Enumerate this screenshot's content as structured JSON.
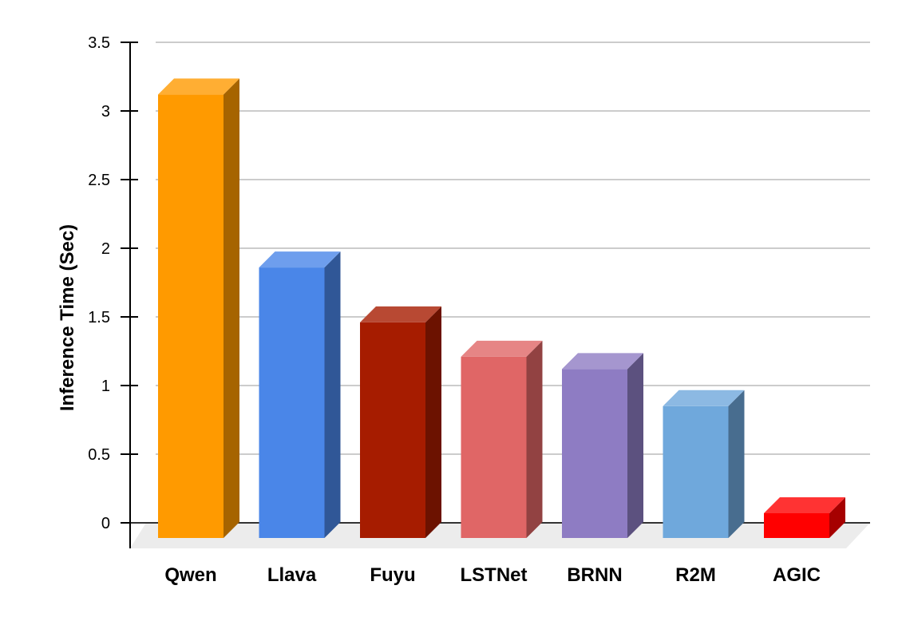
{
  "chart_data": {
    "type": "bar",
    "title": "",
    "xlabel": "",
    "ylabel": "Inference Time (Sec)",
    "ylim": [
      0,
      3.5
    ],
    "yticks": [
      "0",
      "0.5",
      "1",
      "1.5",
      "2",
      "2.5",
      "3",
      "3.5"
    ],
    "grid": true,
    "style": "3d",
    "categories": [
      "Qwen",
      "Llava",
      "Fuyu",
      "LSTNet",
      "BRNN",
      "R2M",
      "AGIC"
    ],
    "values": [
      3.12,
      1.86,
      1.46,
      1.21,
      1.12,
      0.85,
      0.07
    ],
    "colors": [
      "#ff9a00",
      "#4a86e8",
      "#a61c00",
      "#e06666",
      "#8e7cc3",
      "#6fa8dc",
      "#ff0000"
    ]
  }
}
